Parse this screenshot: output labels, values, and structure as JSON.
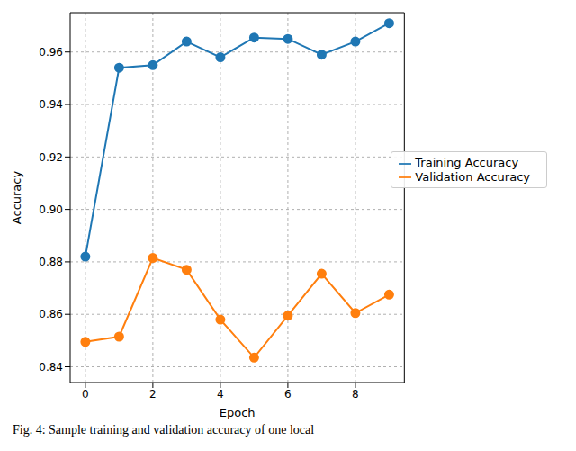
{
  "chart_data": {
    "type": "line",
    "title": "Fig. 4: Sample training and validation accuracy of one local",
    "x_label": "Epoch",
    "y_label": "Accuracy",
    "x": [
      0,
      1,
      2,
      3,
      4,
      5,
      6,
      7,
      8,
      9
    ],
    "series": [
      {
        "name": "Training Accuracy",
        "color": "#1f77b4",
        "marker": "o",
        "values": [
          0.882,
          0.954,
          0.955,
          0.964,
          0.958,
          0.9655,
          0.965,
          0.959,
          0.964,
          0.971
        ]
      },
      {
        "name": "Validation Accuracy",
        "color": "#ff7f0e",
        "marker": "o",
        "values": [
          0.8495,
          0.8515,
          0.8815,
          0.877,
          0.858,
          0.8435,
          0.8595,
          0.8755,
          0.8605,
          0.8675
        ]
      }
    ],
    "xlim": [
      -0.45,
      9.45
    ],
    "xticks": [
      0,
      2,
      4,
      6,
      8
    ],
    "ylim": [
      0.834,
      0.975
    ],
    "yticks": [
      0.84,
      0.86,
      0.88,
      {
        "value": 0.9,
        "label": "0.90"
      },
      0.92,
      0.94,
      0.96
    ],
    "grid": true,
    "legend": "center right"
  }
}
